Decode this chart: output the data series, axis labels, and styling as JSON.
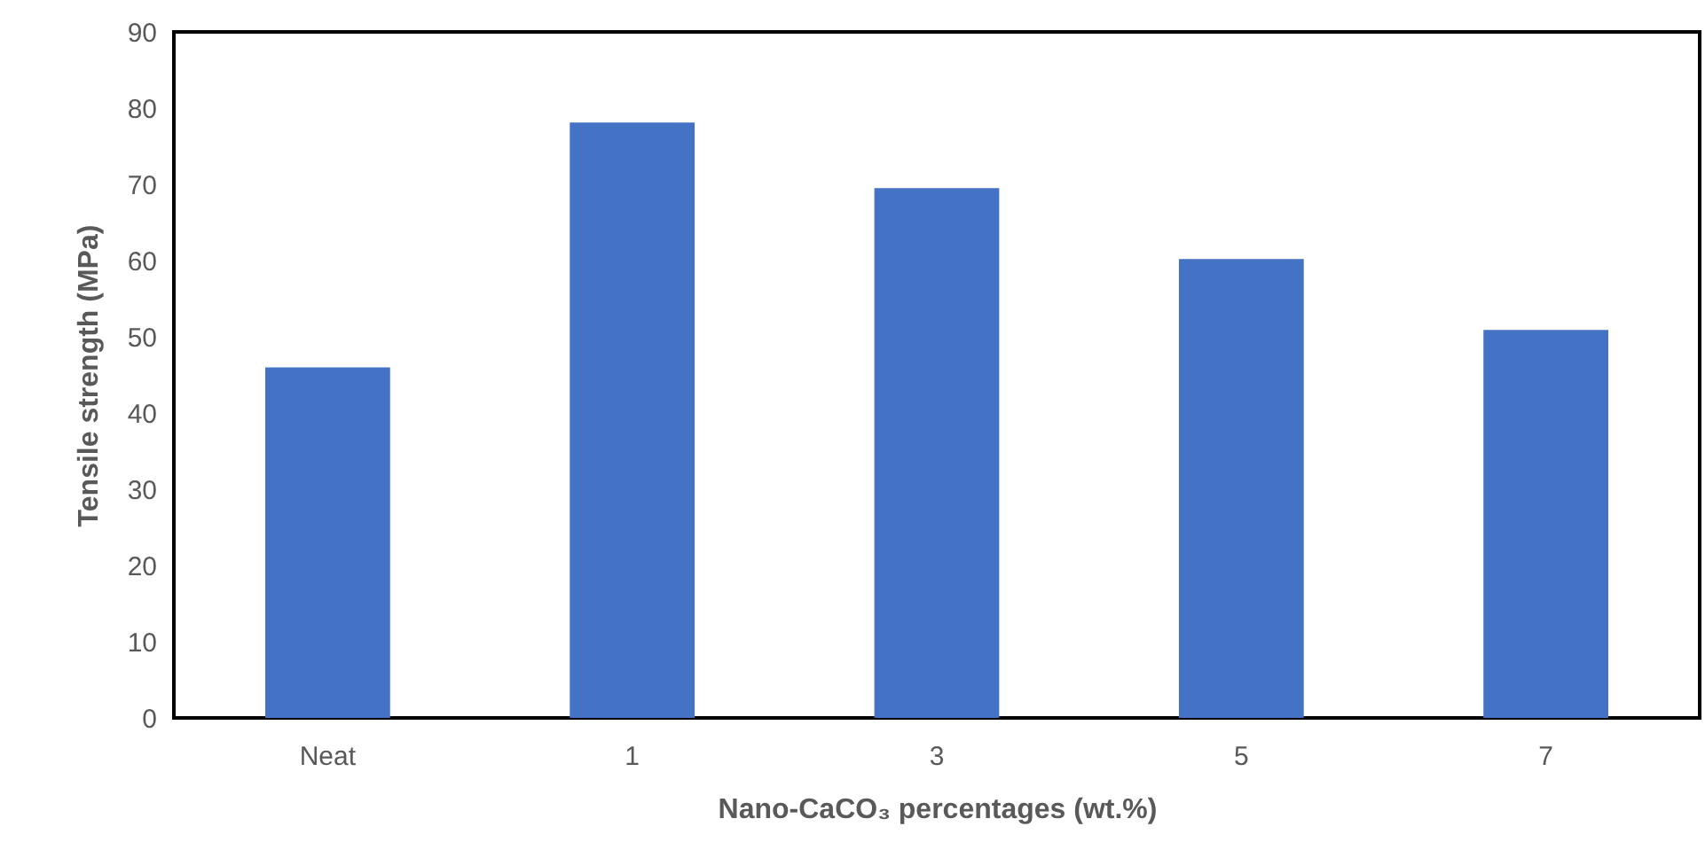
{
  "chart_data": {
    "type": "bar",
    "xlabel": "Nano-CaCO₃ percentages (wt.%)",
    "ylabel": "Tensile strength (MPa)",
    "categories": [
      "Neat",
      "1",
      "3",
      "5",
      "7"
    ],
    "values": [
      46,
      78.1,
      69.5,
      60.2,
      50.9
    ],
    "color": "#4472c4",
    "ylim": [
      0,
      90
    ],
    "yticks": [
      0,
      10,
      20,
      30,
      40,
      50,
      60,
      70,
      80,
      90
    ],
    "grid": false
  }
}
